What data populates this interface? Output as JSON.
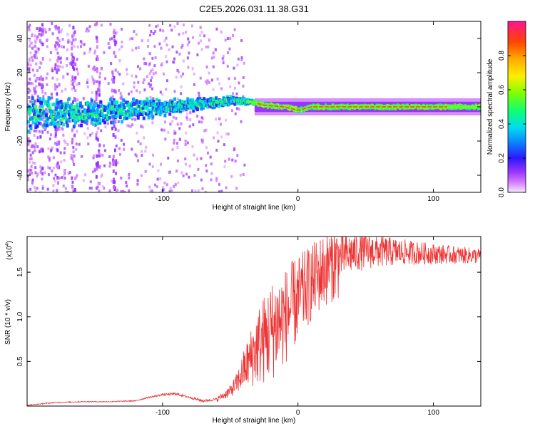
{
  "chart_data": [
    {
      "type": "heatmap",
      "title": "C2E5.2026.031.11.38.G31",
      "xlabel": "Height of straight line (km)",
      "ylabel": "Frequency (Hz)",
      "xlim": [
        -200,
        135
      ],
      "ylim": [
        -50,
        50
      ],
      "xticks": [
        -100,
        0,
        100
      ],
      "yticks": [
        -40,
        -20,
        0,
        20,
        40
      ],
      "colorbar": {
        "label": "Normalized spectral amplitude",
        "range": [
          0,
          1
        ],
        "ticks": [
          0.0,
          0.2,
          0.4,
          0.6,
          0.8
        ]
      },
      "ridge": {
        "description_points_km_hz": [
          [
            -200,
            -4
          ],
          [
            -150,
            -3
          ],
          [
            -100,
            0
          ],
          [
            -70,
            2
          ],
          [
            -50,
            4
          ],
          [
            -35,
            3
          ],
          [
            -25,
            1
          ],
          [
            -10,
            0
          ],
          [
            0,
            -2
          ],
          [
            10,
            0
          ],
          [
            135,
            0
          ]
        ]
      }
    },
    {
      "type": "line",
      "title": "",
      "xlabel": "Height of straight line (km)",
      "ylabel": "SNR (10 * v/v)",
      "yscale_label": "(x10",
      "yscale_exp": "4",
      "xlim": [
        -200,
        135
      ],
      "ylim": [
        0,
        1.9
      ],
      "xticks": [
        -100,
        0,
        100
      ],
      "yticks": [
        0.5,
        1.0,
        1.5
      ],
      "ytick_labels": [
        "0.5",
        "1.0",
        "1.5"
      ],
      "color": "#ee3333",
      "envelope_km_snr": [
        [
          -200,
          0.01
        ],
        [
          -180,
          0.04
        ],
        [
          -160,
          0.05
        ],
        [
          -140,
          0.05
        ],
        [
          -120,
          0.06
        ],
        [
          -110,
          0.1
        ],
        [
          -100,
          0.13
        ],
        [
          -90,
          0.14
        ],
        [
          -80,
          0.1
        ],
        [
          -70,
          0.06
        ],
        [
          -60,
          0.08
        ],
        [
          -50,
          0.18
        ],
        [
          -45,
          0.28
        ],
        [
          -40,
          0.45
        ],
        [
          -35,
          0.6
        ],
        [
          -30,
          0.75
        ],
        [
          -25,
          0.85
        ],
        [
          -20,
          0.95
        ],
        [
          -15,
          1.05
        ],
        [
          -10,
          1.1
        ],
        [
          -5,
          1.2
        ],
        [
          0,
          1.3
        ],
        [
          5,
          1.38
        ],
        [
          10,
          1.47
        ],
        [
          15,
          1.55
        ],
        [
          20,
          1.62
        ],
        [
          25,
          1.68
        ],
        [
          30,
          1.72
        ],
        [
          40,
          1.76
        ],
        [
          50,
          1.78
        ],
        [
          60,
          1.77
        ],
        [
          70,
          1.76
        ],
        [
          80,
          1.75
        ],
        [
          90,
          1.74
        ],
        [
          100,
          1.73
        ],
        [
          110,
          1.72
        ],
        [
          120,
          1.71
        ],
        [
          135,
          1.7
        ]
      ]
    }
  ]
}
